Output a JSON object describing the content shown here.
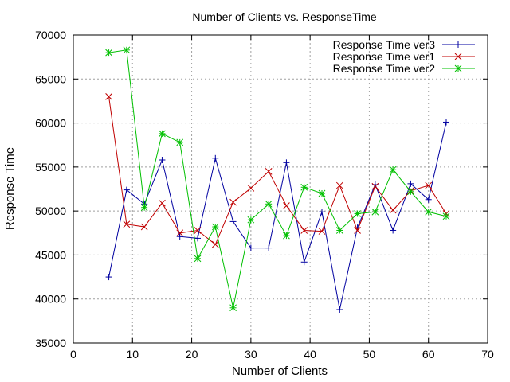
{
  "chart_data": {
    "type": "line",
    "title": "Number of Clients vs. ResponseTime",
    "xlabel": "Number of Clients",
    "ylabel": "Response Time",
    "xlim": [
      0,
      70
    ],
    "ylim": [
      35000,
      70000
    ],
    "xticks": [
      "0",
      "10",
      "20",
      "30",
      "40",
      "50",
      "60",
      "70"
    ],
    "yticks": [
      "35000",
      "40000",
      "45000",
      "50000",
      "55000",
      "60000",
      "65000",
      "70000"
    ],
    "grid": true,
    "legend_position": "top-right",
    "x": [
      6,
      9,
      12,
      15,
      18,
      21,
      24,
      27,
      30,
      33,
      36,
      39,
      42,
      45,
      48,
      51,
      54,
      57,
      60,
      63
    ],
    "series": [
      {
        "name": "Response Time ver3",
        "color": "#0000a0",
        "marker": "plus",
        "values": [
          42500,
          52400,
          50800,
          55800,
          47100,
          46900,
          56000,
          48800,
          45800,
          45800,
          55500,
          44200,
          49900,
          38800,
          48100,
          53000,
          47800,
          53100,
          51300,
          60100
        ]
      },
      {
        "name": "Response Time ver1",
        "color": "#c00000",
        "marker": "cross",
        "values": [
          63000,
          48500,
          48200,
          50900,
          47500,
          47800,
          46200,
          51000,
          52600,
          54500,
          50600,
          47800,
          47700,
          52900,
          47800,
          52800,
          50100,
          52300,
          52900,
          49700
        ]
      },
      {
        "name": "Response Time ver2",
        "color": "#00c000",
        "marker": "star",
        "values": [
          68000,
          68300,
          50400,
          58800,
          57800,
          44600,
          48200,
          39000,
          49000,
          50800,
          47200,
          52700,
          52000,
          47800,
          49700,
          49900,
          54700,
          52200,
          49900,
          49400
        ]
      }
    ]
  }
}
